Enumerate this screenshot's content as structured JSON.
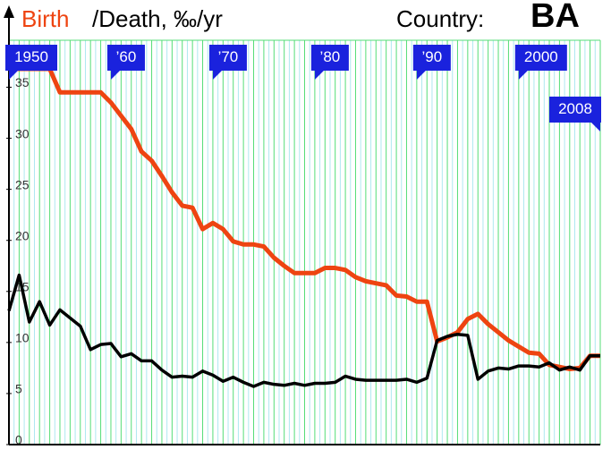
{
  "chart_data": {
    "type": "line",
    "title": "/Death, ‰/yr",
    "country_label": "Country:",
    "country": "BA",
    "x": [
      1950,
      1951,
      1952,
      1953,
      1954,
      1955,
      1956,
      1957,
      1958,
      1959,
      1960,
      1961,
      1962,
      1963,
      1964,
      1965,
      1966,
      1967,
      1968,
      1969,
      1970,
      1971,
      1972,
      1973,
      1974,
      1975,
      1976,
      1977,
      1978,
      1979,
      1980,
      1981,
      1982,
      1983,
      1984,
      1985,
      1986,
      1987,
      1988,
      1989,
      1990,
      1991,
      1992,
      1993,
      1994,
      1995,
      1996,
      1997,
      1998,
      1999,
      2000,
      2001,
      2002,
      2003,
      2004,
      2005,
      2006,
      2007,
      2008
    ],
    "series": [
      {
        "name": "Birth",
        "color": "#ee4411",
        "values": [
          36.8,
          36.8,
          36.8,
          36.8,
          36.8,
          34.5,
          34.5,
          34.5,
          34.5,
          34.5,
          33.5,
          32.2,
          30.9,
          28.7,
          27.8,
          26.3,
          24.7,
          23.4,
          23.2,
          21.1,
          21.7,
          21.1,
          19.9,
          19.6,
          19.6,
          19.4,
          18.3,
          17.5,
          16.8,
          16.8,
          16.8,
          17.3,
          17.3,
          17.1,
          16.4,
          16.0,
          15.8,
          15.6,
          14.6,
          14.5,
          14.0,
          14.0,
          10.1,
          10.5,
          11.0,
          12.3,
          12.8,
          11.8,
          11.0,
          10.2,
          9.6,
          9.0,
          8.9,
          7.8,
          7.6,
          7.4,
          7.5,
          8.7,
          8.7
        ]
      },
      {
        "color": "#000000",
        "values": [
          13.1,
          16.6,
          12.0,
          14.0,
          11.7,
          13.2,
          12.4,
          11.6,
          9.3,
          9.8,
          9.9,
          8.6,
          8.9,
          8.2,
          8.2,
          7.3,
          6.6,
          6.7,
          6.6,
          7.2,
          6.8,
          6.2,
          6.6,
          6.1,
          5.7,
          6.1,
          5.9,
          5.8,
          6.0,
          5.8,
          6.0,
          6.0,
          6.1,
          6.7,
          6.4,
          6.3,
          6.3,
          6.3,
          6.3,
          6.4,
          6.1,
          6.5,
          10.2,
          10.6,
          10.8,
          10.7,
          6.4,
          7.2,
          7.5,
          7.4,
          7.7,
          7.7,
          7.6,
          8.0,
          7.3,
          7.6,
          7.3,
          8.7,
          8.7
        ]
      }
    ],
    "xlim": [
      1950,
      2008
    ],
    "xticks": [
      1950,
      {
        "value": 1960,
        "label": "’60"
      },
      {
        "value": 1970,
        "label": "’70"
      },
      {
        "value": 1980,
        "label": "’80"
      },
      {
        "value": 1990,
        "label": "’90"
      },
      2000,
      2008
    ],
    "ylim": [
      0,
      39.6
    ],
    "yticks": [
      0,
      5,
      10,
      15,
      20,
      25,
      30,
      35
    ]
  }
}
